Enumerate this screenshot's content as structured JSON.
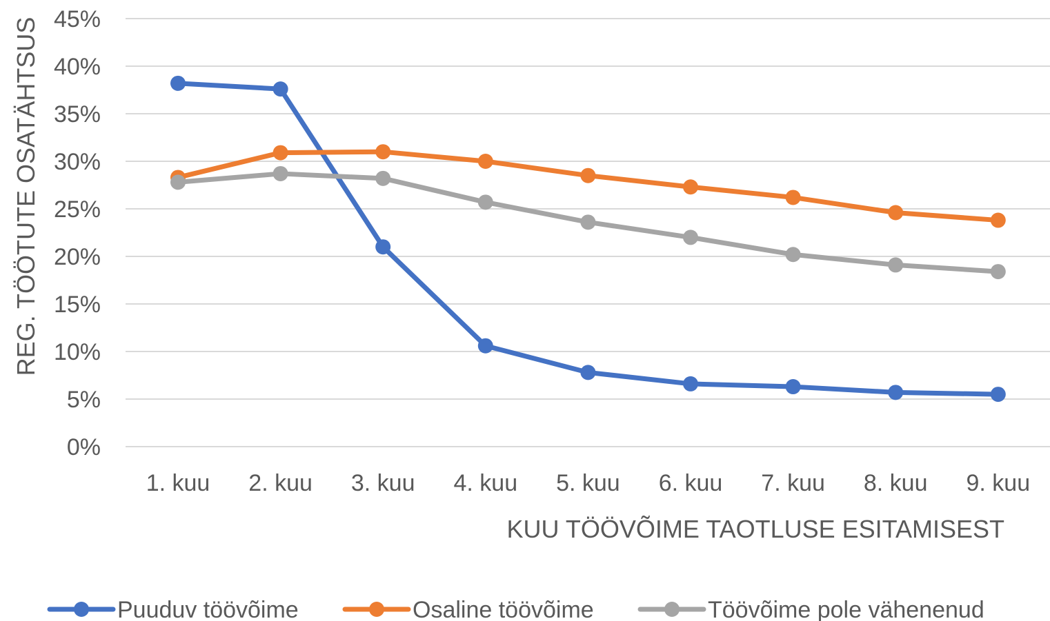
{
  "chart_data": {
    "type": "line",
    "categories": [
      "1. kuu",
      "2. kuu",
      "3. kuu",
      "4. kuu",
      "5. kuu",
      "6. kuu",
      "7. kuu",
      "8. kuu",
      "9. kuu"
    ],
    "series": [
      {
        "name": "Puuduv töövõime",
        "color": "#4472c4",
        "values": [
          38.2,
          37.6,
          21.0,
          10.6,
          7.8,
          6.6,
          6.3,
          5.7,
          5.5
        ]
      },
      {
        "name": "Osaline töövõime",
        "color": "#ed7d31",
        "values": [
          28.3,
          30.9,
          31.0,
          30.0,
          28.5,
          27.3,
          26.2,
          24.6,
          23.8
        ]
      },
      {
        "name": "Töövõime pole vähenenud",
        "color": "#a5a5a5",
        "values": [
          27.8,
          28.7,
          28.2,
          25.7,
          23.6,
          22.0,
          20.2,
          19.1,
          18.4
        ]
      }
    ],
    "y_ticks": [
      "0%",
      "5%",
      "10%",
      "15%",
      "20%",
      "25%",
      "30%",
      "35%",
      "40%",
      "45%"
    ],
    "ylim": [
      0,
      45
    ],
    "xlabel": "KUU TÖÖVÕIME TAOTLUSE ESITAMISEST",
    "ylabel": "REG. TÖÖTUTE OSATÄHTSUS",
    "grid": true,
    "legend_position": "bottom"
  }
}
